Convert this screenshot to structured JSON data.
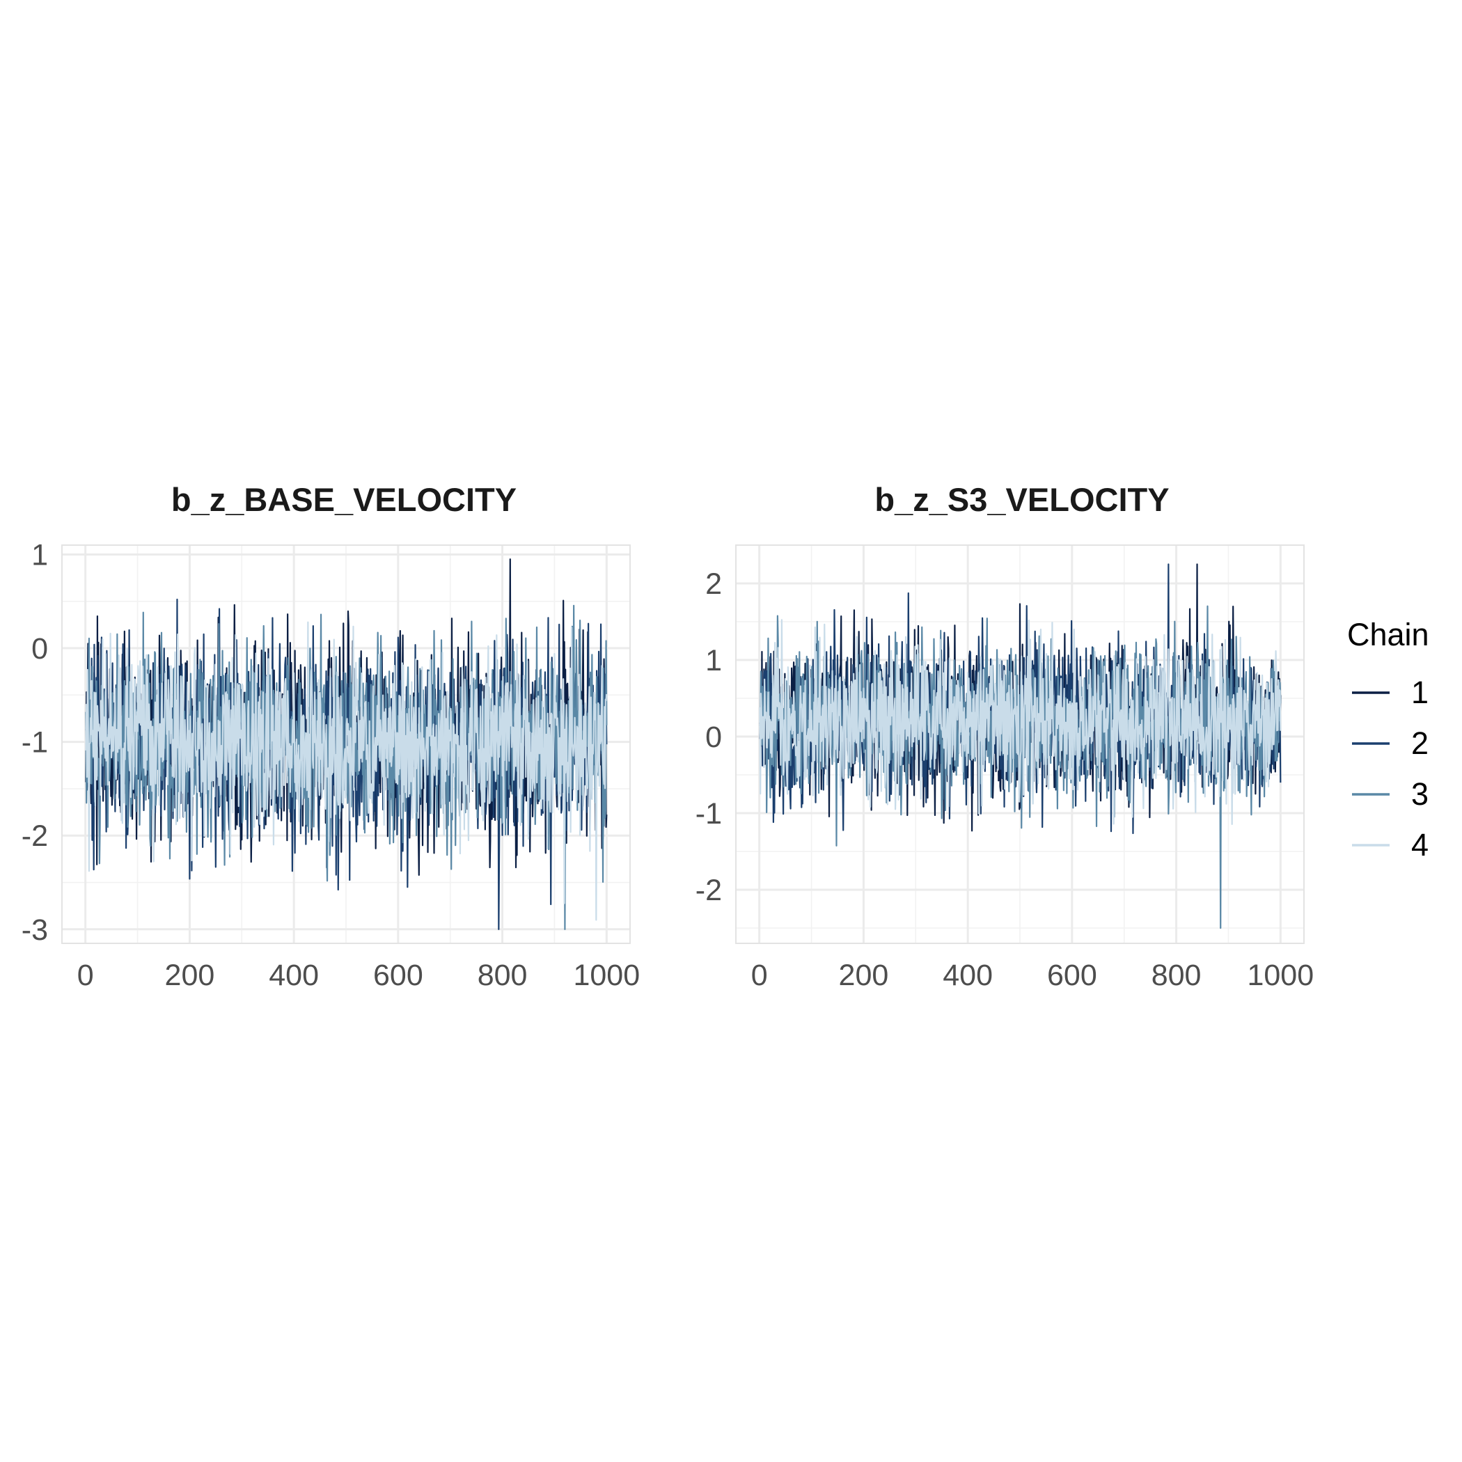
{
  "chart_data": [
    {
      "type": "line",
      "title": "b_z_BASE_VELOCITY",
      "xlabel": "",
      "ylabel": "",
      "xlim": [
        -45,
        1045
      ],
      "ylim": [
        -3.15,
        1.1
      ],
      "x_ticks": [
        0,
        200,
        400,
        600,
        800,
        1000
      ],
      "x_tick_labels": [
        "0",
        "200",
        "400",
        "600",
        "800",
        "1000"
      ],
      "y_ticks": [
        1,
        0,
        -1,
        -2,
        -3
      ],
      "y_tick_labels": [
        "1",
        "0",
        "-1",
        "-2",
        "-3"
      ],
      "grid": true,
      "n_iterations": 1000,
      "series": [
        {
          "name": "1",
          "color": "#0b1f44",
          "mean": -1.0,
          "sd": 0.5,
          "y_range": [
            -3.0,
            0.95
          ]
        },
        {
          "name": "2",
          "color": "#1b3f6e",
          "mean": -1.0,
          "sd": 0.5,
          "y_range": [
            -2.95,
            0.7
          ]
        },
        {
          "name": "3",
          "color": "#5a88a6",
          "mean": -1.0,
          "sd": 0.5,
          "y_range": [
            -2.8,
            0.5
          ]
        },
        {
          "name": "4",
          "color": "#c9dce9",
          "mean": -1.0,
          "sd": 0.45,
          "y_range": [
            -2.9,
            0.7
          ]
        }
      ],
      "annotations": [
        {
          "x": 815,
          "y": 0.95
        },
        {
          "x": 793,
          "y": -3.0
        },
        {
          "x": 920,
          "y": -3.0
        },
        {
          "x": 980,
          "y": -2.9
        }
      ]
    },
    {
      "type": "line",
      "title": "b_z_S3_VELOCITY",
      "xlabel": "",
      "ylabel": "",
      "xlim": [
        -45,
        1045
      ],
      "ylim": [
        -2.7,
        2.5
      ],
      "x_ticks": [
        0,
        200,
        400,
        600,
        800,
        1000
      ],
      "x_tick_labels": [
        "0",
        "200",
        "400",
        "600",
        "800",
        "1000"
      ],
      "y_ticks": [
        2,
        1,
        0,
        -1,
        -2
      ],
      "y_tick_labels": [
        "2",
        "1",
        "0",
        "-1",
        "-2"
      ],
      "grid": true,
      "n_iterations": 1000,
      "series": [
        {
          "name": "1",
          "color": "#0b1f44",
          "mean": 0.2,
          "sd": 0.5,
          "y_range": [
            -1.6,
            2.25
          ]
        },
        {
          "name": "2",
          "color": "#1b3f6e",
          "mean": 0.2,
          "sd": 0.5,
          "y_range": [
            -1.65,
            2.0
          ]
        },
        {
          "name": "3",
          "color": "#5a88a6",
          "mean": 0.2,
          "sd": 0.5,
          "y_range": [
            -2.5,
            2.25
          ]
        },
        {
          "name": "4",
          "color": "#c9dce9",
          "mean": 0.2,
          "sd": 0.45,
          "y_range": [
            -1.55,
            2.0
          ]
        }
      ],
      "annotations": [
        {
          "x": 840,
          "y": 2.25
        },
        {
          "x": 785,
          "y": 2.25
        },
        {
          "x": 885,
          "y": -2.5
        }
      ]
    }
  ],
  "legend": {
    "title": "Chain",
    "position": "right",
    "items": [
      {
        "label": "1",
        "color": "#0b1f44"
      },
      {
        "label": "2",
        "color": "#1b3f6e"
      },
      {
        "label": "3",
        "color": "#5a88a6"
      },
      {
        "label": "4",
        "color": "#c9dce9"
      }
    ]
  }
}
